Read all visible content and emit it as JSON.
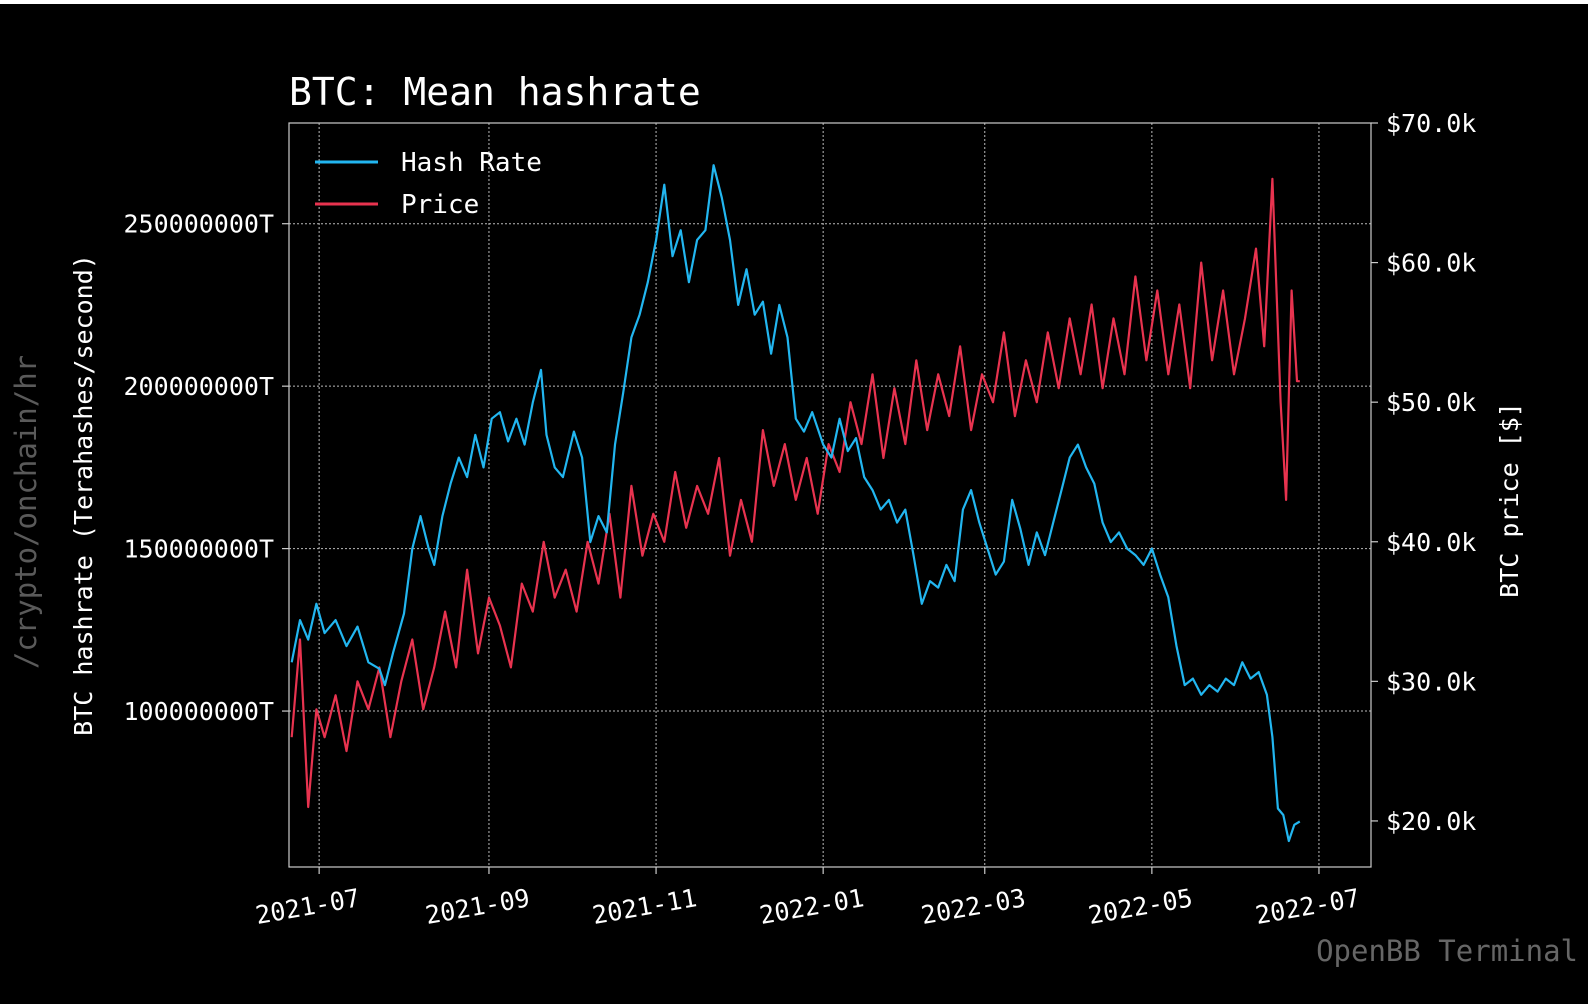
{
  "watermark": "/crypto/onchain/hr",
  "brand": "OpenBB Terminal",
  "chart_data": {
    "type": "line",
    "title": "BTC: Mean hashrate",
    "ylabel_left": "BTC hashrate (Terahashes/second)",
    "ylabel_right": "BTC price [$]",
    "x_ticks": [
      "2021-07",
      "2021-09",
      "2021-11",
      "2022-01",
      "2022-03",
      "2022-05",
      "2022-07"
    ],
    "x_range": [
      "2021-06-20",
      "2022-07-20"
    ],
    "y_left_ticks": [
      100000000,
      150000000,
      200000000,
      250000000
    ],
    "y_left_tick_labels": [
      "100000000T",
      "150000000T",
      "200000000T",
      "250000000T"
    ],
    "y_left_range": [
      52000000,
      281000000
    ],
    "y_right_ticks": [
      20000,
      30000,
      40000,
      50000,
      60000,
      70000
    ],
    "y_right_tick_labels": [
      "$20.0k",
      "$30.0k",
      "$40.0k",
      "$50.0k",
      "$60.0k",
      "$70.0k"
    ],
    "y_right_range": [
      16700,
      70000
    ],
    "grid": true,
    "legend_position": "top-left",
    "colors": {
      "hash_rate": "#22b6f0",
      "price": "#e8334f",
      "grid": "#bbbbbb",
      "background": "#000000"
    },
    "series": [
      {
        "name": "Hash Rate",
        "axis": "left",
        "points": [
          [
            "2021-06-21",
            115000000
          ],
          [
            "2021-06-24",
            128000000
          ],
          [
            "2021-06-27",
            122000000
          ],
          [
            "2021-06-30",
            133000000
          ],
          [
            "2021-07-03",
            124000000
          ],
          [
            "2021-07-07",
            128000000
          ],
          [
            "2021-07-11",
            120000000
          ],
          [
            "2021-07-15",
            126000000
          ],
          [
            "2021-07-19",
            115000000
          ],
          [
            "2021-07-23",
            113000000
          ],
          [
            "2021-07-25",
            108000000
          ],
          [
            "2021-07-28",
            118000000
          ],
          [
            "2021-08-01",
            130000000
          ],
          [
            "2021-08-04",
            150000000
          ],
          [
            "2021-08-07",
            160000000
          ],
          [
            "2021-08-10",
            150000000
          ],
          [
            "2021-08-12",
            145000000
          ],
          [
            "2021-08-15",
            160000000
          ],
          [
            "2021-08-18",
            170000000
          ],
          [
            "2021-08-21",
            178000000
          ],
          [
            "2021-08-24",
            172000000
          ],
          [
            "2021-08-27",
            185000000
          ],
          [
            "2021-08-30",
            175000000
          ],
          [
            "2021-09-02",
            190000000
          ],
          [
            "2021-09-05",
            192000000
          ],
          [
            "2021-09-08",
            183000000
          ],
          [
            "2021-09-11",
            190000000
          ],
          [
            "2021-09-14",
            182000000
          ],
          [
            "2021-09-17",
            195000000
          ],
          [
            "2021-09-20",
            205000000
          ],
          [
            "2021-09-22",
            185000000
          ],
          [
            "2021-09-25",
            175000000
          ],
          [
            "2021-09-28",
            172000000
          ],
          [
            "2021-10-02",
            186000000
          ],
          [
            "2021-10-05",
            178000000
          ],
          [
            "2021-10-08",
            152000000
          ],
          [
            "2021-10-11",
            160000000
          ],
          [
            "2021-10-14",
            155000000
          ],
          [
            "2021-10-17",
            182000000
          ],
          [
            "2021-10-20",
            198000000
          ],
          [
            "2021-10-23",
            215000000
          ],
          [
            "2021-10-26",
            222000000
          ],
          [
            "2021-10-29",
            232000000
          ],
          [
            "2021-11-01",
            245000000
          ],
          [
            "2021-11-04",
            262000000
          ],
          [
            "2021-11-07",
            240000000
          ],
          [
            "2021-11-10",
            248000000
          ],
          [
            "2021-11-13",
            232000000
          ],
          [
            "2021-11-16",
            245000000
          ],
          [
            "2021-11-19",
            248000000
          ],
          [
            "2021-11-22",
            268000000
          ],
          [
            "2021-11-25",
            258000000
          ],
          [
            "2021-11-28",
            245000000
          ],
          [
            "2021-12-01",
            225000000
          ],
          [
            "2021-12-04",
            236000000
          ],
          [
            "2021-12-07",
            222000000
          ],
          [
            "2021-12-10",
            226000000
          ],
          [
            "2021-12-13",
            210000000
          ],
          [
            "2021-12-16",
            225000000
          ],
          [
            "2021-12-19",
            215000000
          ],
          [
            "2021-12-22",
            190000000
          ],
          [
            "2021-12-25",
            186000000
          ],
          [
            "2021-12-28",
            192000000
          ],
          [
            "2022-01-01",
            182000000
          ],
          [
            "2022-01-04",
            178000000
          ],
          [
            "2022-01-07",
            190000000
          ],
          [
            "2022-01-10",
            180000000
          ],
          [
            "2022-01-13",
            184000000
          ],
          [
            "2022-01-16",
            172000000
          ],
          [
            "2022-01-19",
            168000000
          ],
          [
            "2022-01-22",
            162000000
          ],
          [
            "2022-01-25",
            165000000
          ],
          [
            "2022-01-28",
            158000000
          ],
          [
            "2022-01-31",
            162000000
          ],
          [
            "2022-02-03",
            148000000
          ],
          [
            "2022-02-06",
            133000000
          ],
          [
            "2022-02-09",
            140000000
          ],
          [
            "2022-02-12",
            138000000
          ],
          [
            "2022-02-15",
            145000000
          ],
          [
            "2022-02-18",
            140000000
          ],
          [
            "2022-02-21",
            162000000
          ],
          [
            "2022-02-24",
            168000000
          ],
          [
            "2022-02-27",
            158000000
          ],
          [
            "2022-03-02",
            150000000
          ],
          [
            "2022-03-05",
            142000000
          ],
          [
            "2022-03-08",
            146000000
          ],
          [
            "2022-03-11",
            165000000
          ],
          [
            "2022-03-14",
            156000000
          ],
          [
            "2022-03-17",
            145000000
          ],
          [
            "2022-03-20",
            155000000
          ],
          [
            "2022-03-23",
            148000000
          ],
          [
            "2022-03-26",
            158000000
          ],
          [
            "2022-03-29",
            168000000
          ],
          [
            "2022-04-01",
            178000000
          ],
          [
            "2022-04-04",
            182000000
          ],
          [
            "2022-04-07",
            175000000
          ],
          [
            "2022-04-10",
            170000000
          ],
          [
            "2022-04-13",
            158000000
          ],
          [
            "2022-04-16",
            152000000
          ],
          [
            "2022-04-19",
            155000000
          ],
          [
            "2022-04-22",
            150000000
          ],
          [
            "2022-04-25",
            148000000
          ],
          [
            "2022-04-28",
            145000000
          ],
          [
            "2022-05-01",
            150000000
          ],
          [
            "2022-05-04",
            142000000
          ],
          [
            "2022-05-07",
            135000000
          ],
          [
            "2022-05-10",
            120000000
          ],
          [
            "2022-05-13",
            108000000
          ],
          [
            "2022-05-16",
            110000000
          ],
          [
            "2022-05-19",
            105000000
          ],
          [
            "2022-05-22",
            108000000
          ],
          [
            "2022-05-25",
            106000000
          ],
          [
            "2022-05-28",
            110000000
          ],
          [
            "2022-05-31",
            108000000
          ],
          [
            "2022-06-03",
            115000000
          ],
          [
            "2022-06-06",
            110000000
          ],
          [
            "2022-06-09",
            112000000
          ],
          [
            "2022-06-12",
            105000000
          ],
          [
            "2022-06-14",
            92000000
          ],
          [
            "2022-06-16",
            70000000
          ],
          [
            "2022-06-18",
            68000000
          ],
          [
            "2022-06-20",
            60000000
          ],
          [
            "2022-06-22",
            65000000
          ],
          [
            "2022-06-24",
            66000000
          ]
        ]
      },
      {
        "name": "Price",
        "axis": "right",
        "points": [
          [
            "2021-06-21",
            26000
          ],
          [
            "2021-06-24",
            33000
          ],
          [
            "2021-06-27",
            21000
          ],
          [
            "2021-06-30",
            28000
          ],
          [
            "2021-07-03",
            26000
          ],
          [
            "2021-07-07",
            29000
          ],
          [
            "2021-07-11",
            25000
          ],
          [
            "2021-07-15",
            30000
          ],
          [
            "2021-07-19",
            28000
          ],
          [
            "2021-07-23",
            31000
          ],
          [
            "2021-07-27",
            26000
          ],
          [
            "2021-07-31",
            30000
          ],
          [
            "2021-08-04",
            33000
          ],
          [
            "2021-08-08",
            28000
          ],
          [
            "2021-08-12",
            31000
          ],
          [
            "2021-08-16",
            35000
          ],
          [
            "2021-08-20",
            31000
          ],
          [
            "2021-08-24",
            38000
          ],
          [
            "2021-08-28",
            32000
          ],
          [
            "2021-09-01",
            36000
          ],
          [
            "2021-09-05",
            34000
          ],
          [
            "2021-09-09",
            31000
          ],
          [
            "2021-09-13",
            37000
          ],
          [
            "2021-09-17",
            35000
          ],
          [
            "2021-09-21",
            40000
          ],
          [
            "2021-09-25",
            36000
          ],
          [
            "2021-09-29",
            38000
          ],
          [
            "2021-10-03",
            35000
          ],
          [
            "2021-10-07",
            40000
          ],
          [
            "2021-10-11",
            37000
          ],
          [
            "2021-10-15",
            42000
          ],
          [
            "2021-10-19",
            36000
          ],
          [
            "2021-10-23",
            44000
          ],
          [
            "2021-10-27",
            39000
          ],
          [
            "2021-10-31",
            42000
          ],
          [
            "2021-11-04",
            40000
          ],
          [
            "2021-11-08",
            45000
          ],
          [
            "2021-11-12",
            41000
          ],
          [
            "2021-11-16",
            44000
          ],
          [
            "2021-11-20",
            42000
          ],
          [
            "2021-11-24",
            46000
          ],
          [
            "2021-11-28",
            39000
          ],
          [
            "2021-12-02",
            43000
          ],
          [
            "2021-12-06",
            40000
          ],
          [
            "2021-12-10",
            48000
          ],
          [
            "2021-12-14",
            44000
          ],
          [
            "2021-12-18",
            47000
          ],
          [
            "2021-12-22",
            43000
          ],
          [
            "2021-12-26",
            46000
          ],
          [
            "2021-12-30",
            42000
          ],
          [
            "2022-01-03",
            47000
          ],
          [
            "2022-01-07",
            45000
          ],
          [
            "2022-01-11",
            50000
          ],
          [
            "2022-01-15",
            47000
          ],
          [
            "2022-01-19",
            52000
          ],
          [
            "2022-01-23",
            46000
          ],
          [
            "2022-01-27",
            51000
          ],
          [
            "2022-01-31",
            47000
          ],
          [
            "2022-02-04",
            53000
          ],
          [
            "2022-02-08",
            48000
          ],
          [
            "2022-02-12",
            52000
          ],
          [
            "2022-02-16",
            49000
          ],
          [
            "2022-02-20",
            54000
          ],
          [
            "2022-02-24",
            48000
          ],
          [
            "2022-02-28",
            52000
          ],
          [
            "2022-03-04",
            50000
          ],
          [
            "2022-03-08",
            55000
          ],
          [
            "2022-03-12",
            49000
          ],
          [
            "2022-03-16",
            53000
          ],
          [
            "2022-03-20",
            50000
          ],
          [
            "2022-03-24",
            55000
          ],
          [
            "2022-03-28",
            51000
          ],
          [
            "2022-04-01",
            56000
          ],
          [
            "2022-04-05",
            52000
          ],
          [
            "2022-04-09",
            57000
          ],
          [
            "2022-04-13",
            51000
          ],
          [
            "2022-04-17",
            56000
          ],
          [
            "2022-04-21",
            52000
          ],
          [
            "2022-04-25",
            59000
          ],
          [
            "2022-04-29",
            53000
          ],
          [
            "2022-05-03",
            58000
          ],
          [
            "2022-05-07",
            52000
          ],
          [
            "2022-05-11",
            57000
          ],
          [
            "2022-05-15",
            51000
          ],
          [
            "2022-05-19",
            60000
          ],
          [
            "2022-05-23",
            53000
          ],
          [
            "2022-05-27",
            58000
          ],
          [
            "2022-05-31",
            52000
          ],
          [
            "2022-06-04",
            56000
          ],
          [
            "2022-06-08",
            61000
          ],
          [
            "2022-06-11",
            54000
          ],
          [
            "2022-06-14",
            66000
          ],
          [
            "2022-06-17",
            50000
          ],
          [
            "2022-06-19",
            43000
          ],
          [
            "2022-06-21",
            58000
          ],
          [
            "2022-06-23",
            51500
          ],
          [
            "2022-06-24",
            51500
          ]
        ]
      }
    ]
  }
}
